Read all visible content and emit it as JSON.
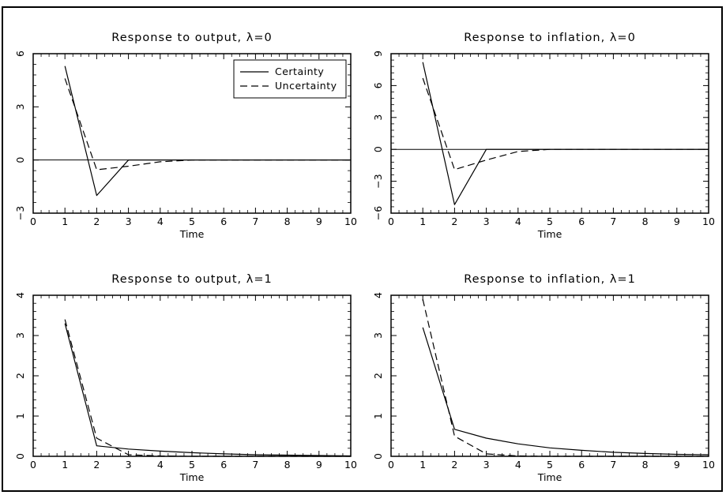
{
  "chart_data": [
    {
      "type": "line",
      "title": "Response to output, λ=0",
      "xlabel": "Time",
      "ylabel": "",
      "xlim": [
        0,
        10
      ],
      "ylim": [
        -3,
        6
      ],
      "xticks": [
        0,
        1,
        2,
        3,
        4,
        5,
        6,
        7,
        8,
        9,
        10
      ],
      "yticks": [
        -3,
        0,
        3,
        6
      ],
      "zero_line": true,
      "legend": {
        "position": "top-right"
      },
      "series": [
        {
          "name": "Certainty",
          "style": "solid",
          "x": [
            1,
            2,
            3,
            4,
            5,
            6,
            7,
            8,
            9,
            10
          ],
          "y": [
            5.3,
            -2.0,
            0.0,
            0.0,
            0.0,
            0.0,
            0.0,
            0.0,
            0.0,
            0.0
          ]
        },
        {
          "name": "Uncertainty",
          "style": "dashed",
          "x": [
            1,
            2,
            3,
            4,
            5,
            6,
            7,
            8,
            9,
            10
          ],
          "y": [
            4.6,
            -0.55,
            -0.35,
            -0.1,
            0.0,
            0.0,
            0.0,
            0.0,
            0.0,
            0.0
          ]
        }
      ]
    },
    {
      "type": "line",
      "title": "Response to inflation, λ=0",
      "xlabel": "Time",
      "ylabel": "",
      "xlim": [
        0,
        10
      ],
      "ylim": [
        -6,
        9
      ],
      "xticks": [
        0,
        1,
        2,
        3,
        4,
        5,
        6,
        7,
        8,
        9,
        10
      ],
      "yticks": [
        -6,
        -3,
        0,
        3,
        6,
        9
      ],
      "zero_line": true,
      "series": [
        {
          "name": "Certainty",
          "style": "solid",
          "x": [
            1,
            2,
            3,
            4,
            5,
            6,
            7,
            8,
            9,
            10
          ],
          "y": [
            8.2,
            -5.2,
            0.0,
            0.0,
            0.0,
            0.0,
            0.0,
            0.0,
            0.0,
            0.0
          ]
        },
        {
          "name": "Uncertainty",
          "style": "dashed",
          "x": [
            1,
            2,
            3,
            4,
            5,
            6,
            7,
            8,
            9,
            10
          ],
          "y": [
            6.7,
            -1.9,
            -1.0,
            -0.2,
            0.0,
            0.0,
            0.0,
            0.0,
            0.0,
            0.0
          ]
        }
      ]
    },
    {
      "type": "line",
      "title": "Response to output, λ=1",
      "xlabel": "Time",
      "ylabel": "",
      "xlim": [
        0,
        10
      ],
      "ylim": [
        0,
        4
      ],
      "xticks": [
        0,
        1,
        2,
        3,
        4,
        5,
        6,
        7,
        8,
        9,
        10
      ],
      "yticks": [
        0,
        1,
        2,
        3,
        4
      ],
      "zero_line": false,
      "series": [
        {
          "name": "Certainty",
          "style": "solid",
          "x": [
            1,
            2,
            3,
            4,
            5,
            6,
            7,
            8,
            9,
            10
          ],
          "y": [
            3.3,
            0.26,
            0.18,
            0.13,
            0.09,
            0.06,
            0.04,
            0.03,
            0.02,
            0.01
          ]
        },
        {
          "name": "Uncertainty",
          "style": "dashed",
          "x": [
            1,
            2,
            3,
            4,
            5,
            6,
            7,
            8,
            9,
            10
          ],
          "y": [
            3.4,
            0.45,
            0.04,
            0.01,
            0.0,
            0.0,
            0.0,
            0.0,
            0.0,
            0.0
          ]
        }
      ]
    },
    {
      "type": "line",
      "title": "Response to inflation, λ=1",
      "xlabel": "Time",
      "ylabel": "",
      "xlim": [
        0,
        10
      ],
      "ylim": [
        0,
        4
      ],
      "xticks": [
        0,
        1,
        2,
        3,
        4,
        5,
        6,
        7,
        8,
        9,
        10
      ],
      "yticks": [
        0,
        1,
        2,
        3,
        4
      ],
      "zero_line": false,
      "series": [
        {
          "name": "Certainty",
          "style": "solid",
          "x": [
            1,
            2,
            3,
            4,
            5,
            6,
            7,
            8,
            9,
            10
          ],
          "y": [
            3.2,
            0.67,
            0.45,
            0.31,
            0.21,
            0.15,
            0.1,
            0.07,
            0.05,
            0.04
          ]
        },
        {
          "name": "Uncertainty",
          "style": "dashed",
          "x": [
            1,
            2,
            3,
            4,
            5,
            6,
            7,
            8,
            9,
            10
          ],
          "y": [
            3.9,
            0.5,
            0.06,
            0.01,
            0.0,
            0.0,
            0.0,
            0.0,
            0.0,
            0.0
          ]
        }
      ]
    }
  ]
}
